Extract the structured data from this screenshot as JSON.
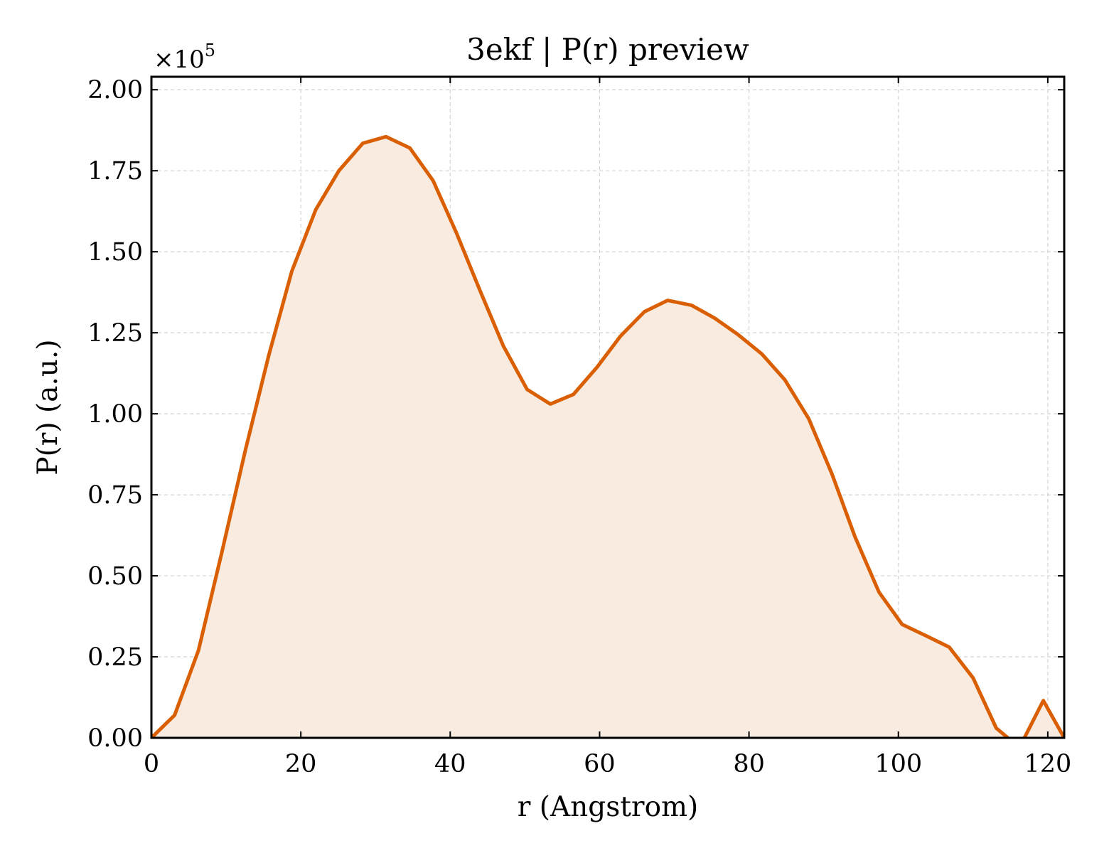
{
  "chart_data": {
    "type": "area",
    "title": "3ekf | P(r) preview",
    "xlabel": "r (Angstrom)",
    "ylabel": "P(r) (a.u.)",
    "y_offset_text": "×10",
    "y_offset_exponent": "5",
    "xlim": [
      0,
      122.2
    ],
    "ylim": [
      0,
      2.04
    ],
    "x_ticks": [
      0,
      20,
      40,
      60,
      80,
      100,
      120
    ],
    "x_tick_labels": [
      "0",
      "20",
      "40",
      "60",
      "80",
      "100",
      "120"
    ],
    "y_ticks": [
      0,
      0.25,
      0.5,
      0.75,
      1.0,
      1.25,
      1.5,
      1.75,
      2.0
    ],
    "y_tick_labels": [
      "0.00",
      "0.25",
      "0.50",
      "0.75",
      "1.00",
      "1.25",
      "1.50",
      "1.75",
      "2.00"
    ],
    "grid": true,
    "line_color": "#d95f02",
    "fill_color": "#f9ebe0",
    "series": [
      {
        "x": [
          0,
          3.1,
          6.3,
          9.4,
          12.6,
          15.7,
          18.8,
          22.0,
          25.1,
          28.3,
          31.4,
          34.6,
          37.7,
          40.8,
          44.0,
          47.1,
          50.3,
          53.4,
          56.5,
          59.7,
          62.8,
          66.0,
          69.1,
          72.3,
          75.4,
          78.5,
          81.7,
          84.8,
          88.0,
          91.1,
          94.2,
          97.4,
          100.5,
          103.7,
          106.8,
          110.0,
          113.1,
          116.2,
          119.4,
          122.2
        ],
        "y": [
          0.0,
          0.07,
          0.27,
          0.57,
          0.89,
          1.18,
          1.44,
          1.63,
          1.75,
          1.835,
          1.855,
          1.82,
          1.72,
          1.56,
          1.38,
          1.21,
          1.075,
          1.03,
          1.06,
          1.145,
          1.24,
          1.315,
          1.35,
          1.335,
          1.295,
          1.245,
          1.185,
          1.105,
          0.985,
          0.815,
          0.62,
          0.45,
          0.35,
          0.315,
          0.28,
          0.185,
          0.03,
          -0.03,
          0.115,
          0.0
        ]
      }
    ]
  }
}
